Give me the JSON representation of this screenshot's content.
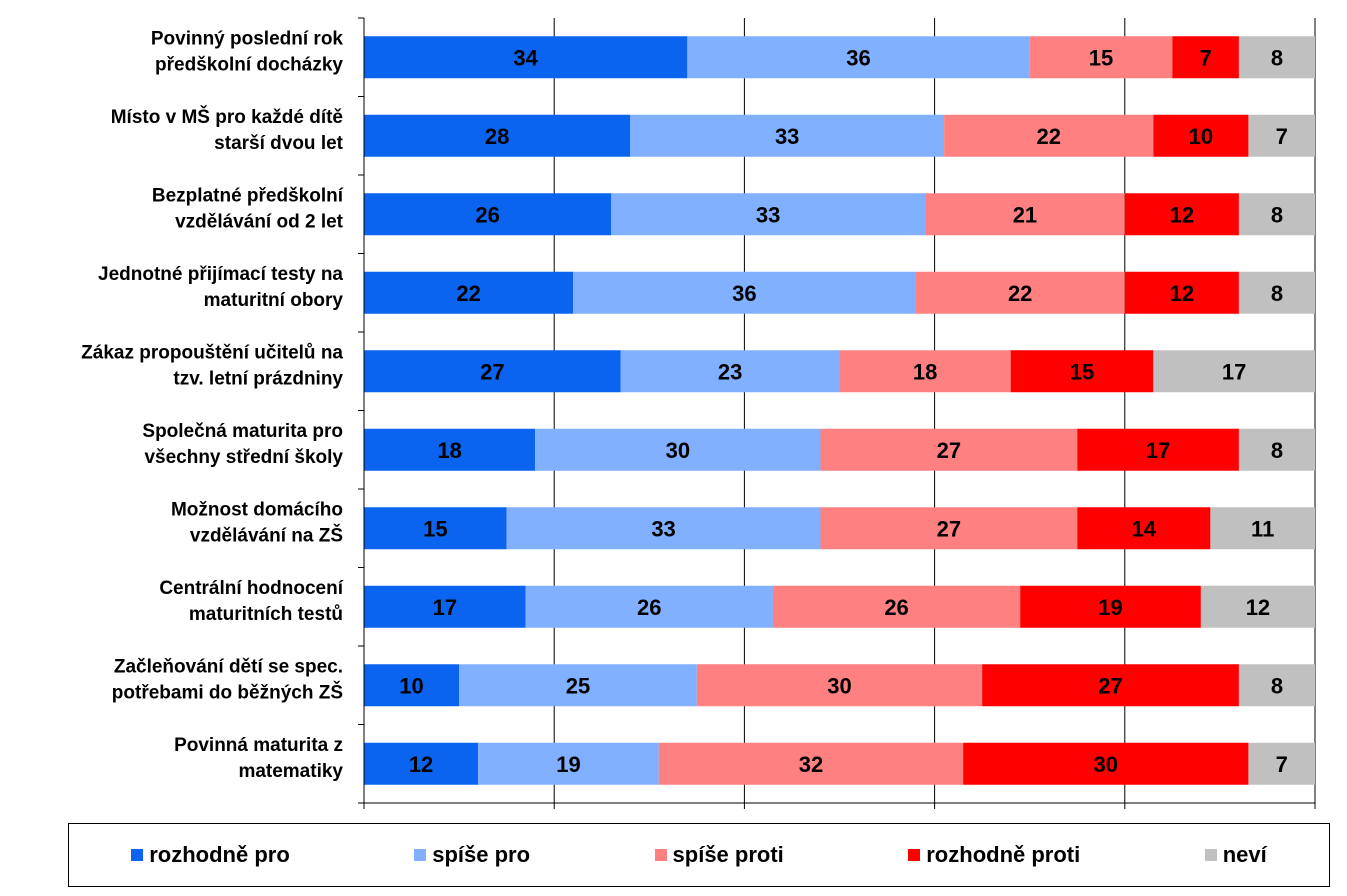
{
  "chart_data": {
    "type": "bar",
    "orientation": "horizontal",
    "stacked": "percent",
    "categories": [
      [
        "Povinný poslední rok",
        "předškolní docházky"
      ],
      [
        "Místo v MŠ pro každé dítě",
        "starší dvou let"
      ],
      [
        "Bezplatné předškolní",
        "vzdělávání od 2 let"
      ],
      [
        "Jednotné přijímací testy na",
        "maturitní obory"
      ],
      [
        "Zákaz propouštění učitelů na",
        "tzv. letní prázdniny"
      ],
      [
        "Společná maturita pro",
        "všechny střední školy"
      ],
      [
        "Možnost domácího",
        "vzdělávání na ZŠ"
      ],
      [
        "Centrální hodnocení",
        "maturitních testů"
      ],
      [
        "Začleňování dětí se spec.",
        "potřebami do běžných ZŠ"
      ],
      [
        "Povinná maturita z",
        "matematiky"
      ]
    ],
    "series": [
      {
        "name": "rozhodně pro",
        "color": "#0a64f0",
        "values": [
          34,
          28,
          26,
          22,
          27,
          18,
          15,
          17,
          10,
          12
        ]
      },
      {
        "name": "spíše pro",
        "color": "#80b0ff",
        "values": [
          36,
          33,
          33,
          36,
          23,
          30,
          33,
          26,
          25,
          19
        ]
      },
      {
        "name": "spíše proti",
        "color": "#ff8080",
        "values": [
          15,
          22,
          21,
          22,
          18,
          27,
          27,
          26,
          30,
          32
        ]
      },
      {
        "name": "rozhodně proti",
        "color": "#ff0000",
        "values": [
          7,
          10,
          12,
          12,
          15,
          17,
          14,
          19,
          27,
          30
        ]
      },
      {
        "name": "neví",
        "color": "#c0c0c0",
        "values": [
          8,
          7,
          8,
          8,
          17,
          8,
          11,
          12,
          8,
          7
        ]
      }
    ],
    "xticks": [
      "0%",
      "20%",
      "40%",
      "60%",
      "80%",
      "100%"
    ],
    "xlim": [
      0,
      100
    ],
    "legend_position": "bottom",
    "grid": "vertical"
  }
}
